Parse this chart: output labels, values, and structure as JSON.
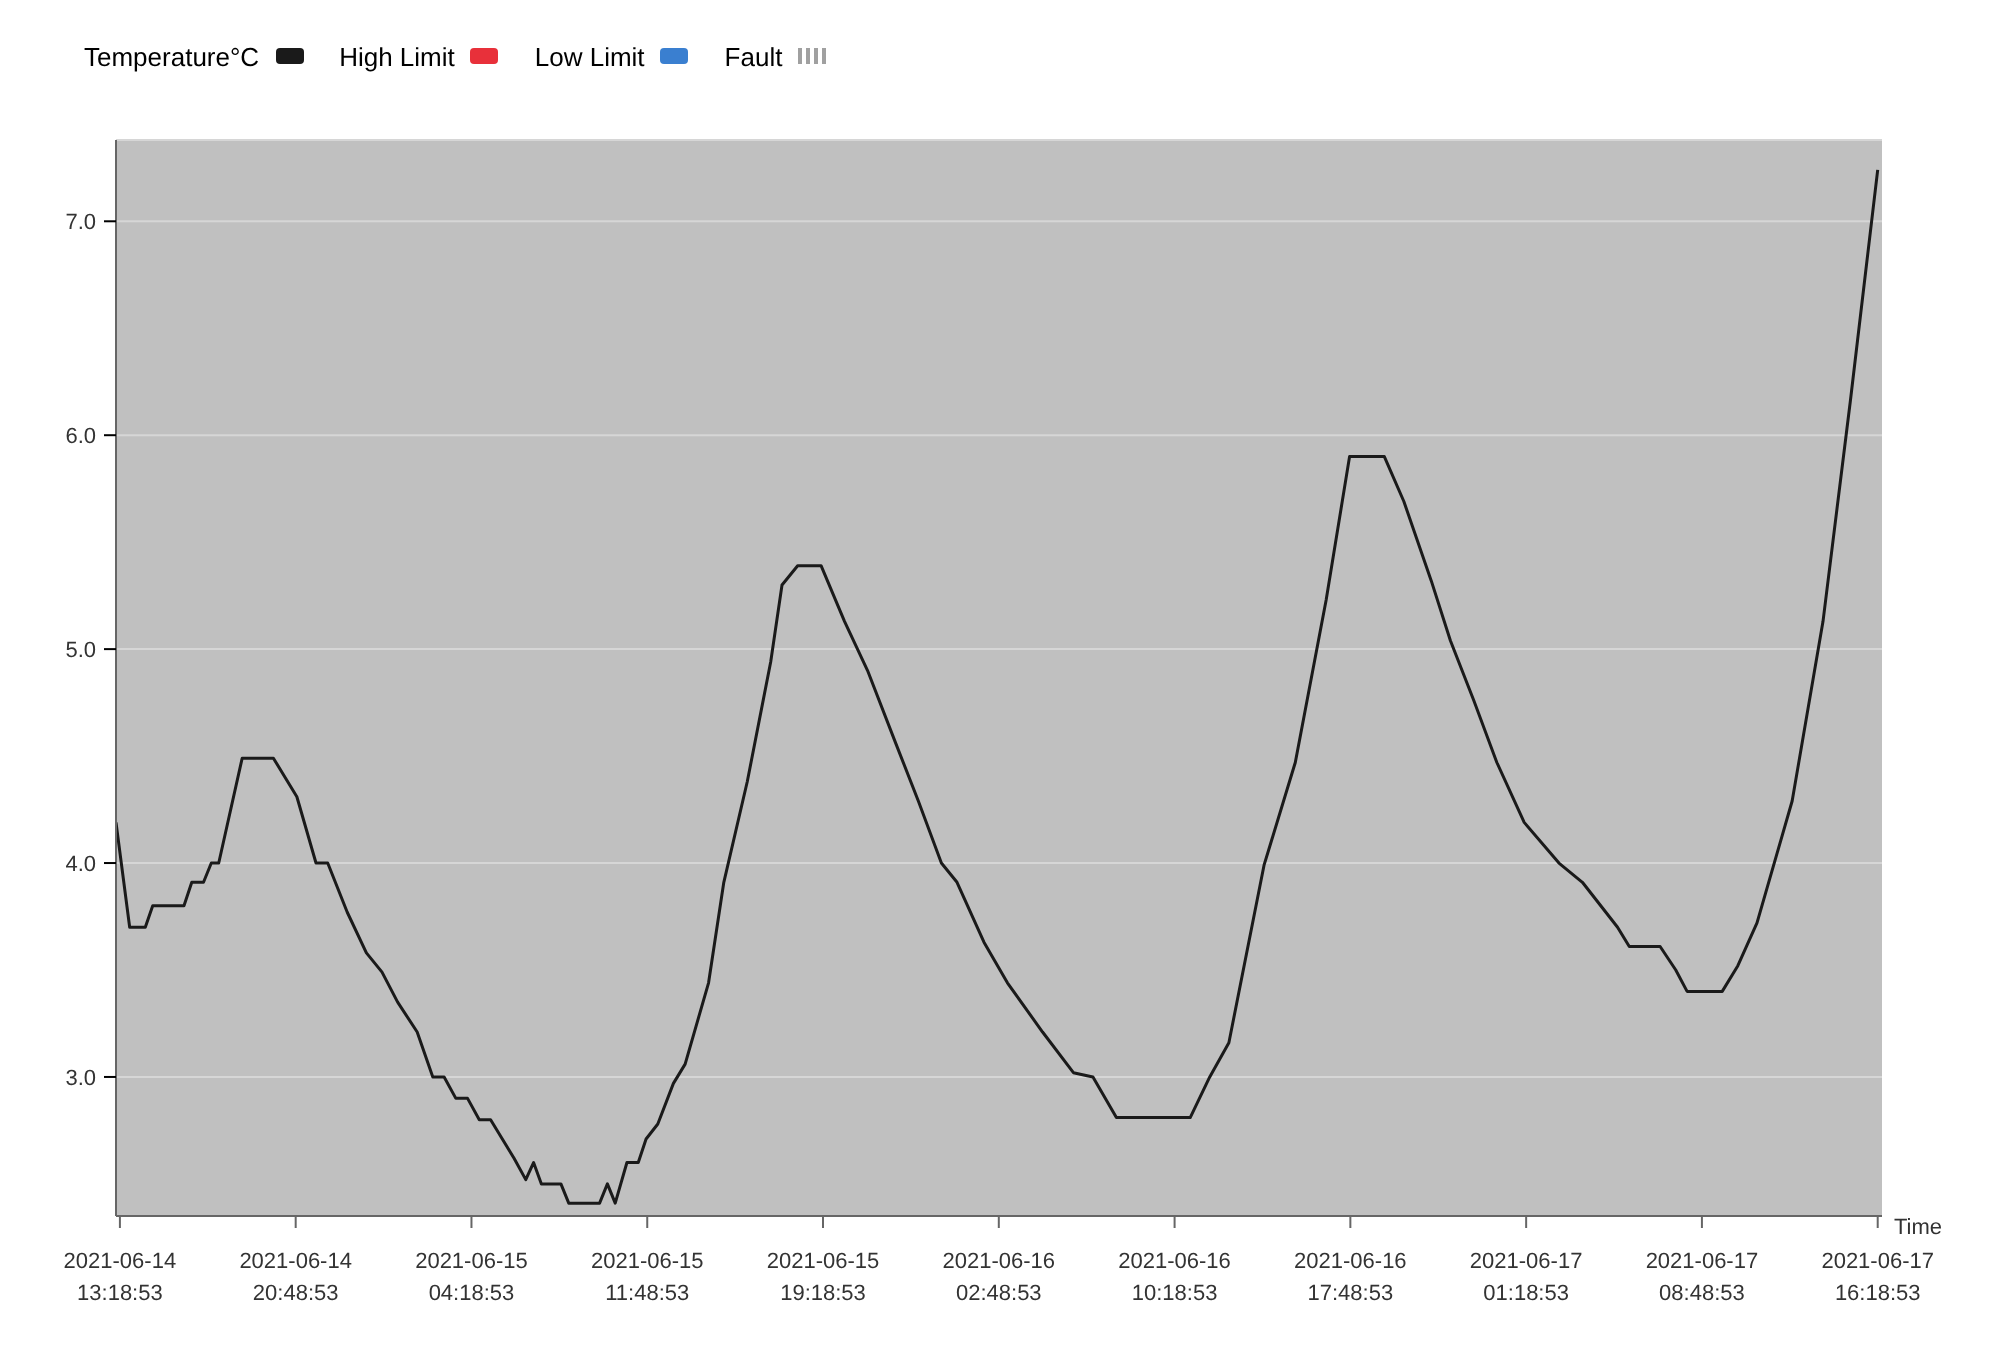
{
  "chart_data": {
    "type": "line",
    "xlabel": "Time",
    "legend": "top left",
    "grid": "y",
    "marker": "none",
    "x": [
      "2021-06-14T13:09",
      "2021-06-14T13:44",
      "2021-06-14T14:24",
      "2021-06-14T14:43",
      "2021-06-14T16:03",
      "2021-06-14T16:23",
      "2021-06-14T16:53",
      "2021-06-14T17:13",
      "2021-06-14T17:32",
      "2021-06-14T18:32",
      "2021-06-14T19:52",
      "2021-06-14T20:52",
      "2021-06-14T21:41",
      "2021-06-14T22:11",
      "2021-06-14T23:01",
      "2021-06-14T23:50",
      "2021-06-15T00:30",
      "2021-06-15T01:10",
      "2021-06-15T02:00",
      "2021-06-15T02:40",
      "2021-06-15T03:09",
      "2021-06-15T03:39",
      "2021-06-15T04:09",
      "2021-06-15T04:39",
      "2021-06-15T05:08",
      "2021-06-15T05:38",
      "2021-06-15T06:08",
      "2021-06-15T06:38",
      "2021-06-15T06:58",
      "2021-06-15T07:18",
      "2021-06-15T08:08",
      "2021-06-15T08:28",
      "2021-06-15T09:47",
      "2021-06-15T10:07",
      "2021-06-15T10:27",
      "2021-06-15T10:57",
      "2021-06-15T11:26",
      "2021-06-15T11:46",
      "2021-06-15T12:16",
      "2021-06-15T12:56",
      "2021-06-15T13:26",
      "2021-06-15T14:26",
      "2021-06-15T15:05",
      "2021-06-15T16:05",
      "2021-06-15T17:05",
      "2021-06-15T17:34",
      "2021-06-15T18:14",
      "2021-06-15T19:14",
      "2021-06-15T20:14",
      "2021-06-15T21:13",
      "2021-06-15T22:23",
      "2021-06-15T23:23",
      "2021-06-16T00:22",
      "2021-06-16T01:02",
      "2021-06-16T02:11",
      "2021-06-16T03:11",
      "2021-06-16T04:41",
      "2021-06-16T06:00",
      "2021-06-16T06:50",
      "2021-06-16T07:50",
      "2021-06-16T10:59",
      "2021-06-16T11:49",
      "2021-06-16T12:38",
      "2021-06-16T14:08",
      "2021-06-16T15:28",
      "2021-06-16T16:47",
      "2021-06-16T17:47",
      "2021-06-16T19:16",
      "2021-06-16T20:06",
      "2021-06-16T21:16",
      "2021-06-16T22:05",
      "2021-06-16T23:05",
      "2021-06-17T00:04",
      "2021-06-17T01:14",
      "2021-06-17T02:43",
      "2021-06-17T03:43",
      "2021-06-17T05:13",
      "2021-06-17T05:43",
      "2021-06-17T07:02",
      "2021-06-17T07:42",
      "2021-06-17T08:11",
      "2021-06-17T09:41",
      "2021-06-17T10:21",
      "2021-06-17T11:10",
      "2021-06-17T12:40",
      "2021-06-17T13:59",
      "2021-06-17T15:09",
      "2021-06-17T16:19"
    ],
    "series": [
      {
        "name": "Temperature°C",
        "color": "#1a1a1a",
        "values": [
          4.19,
          3.7,
          3.7,
          3.8,
          3.8,
          3.91,
          3.91,
          4.0,
          4.0,
          4.49,
          4.49,
          4.31,
          4.0,
          4.0,
          3.77,
          3.58,
          3.49,
          3.35,
          3.21,
          3.0,
          3.0,
          2.9,
          2.9,
          2.8,
          2.8,
          2.71,
          2.62,
          2.52,
          2.6,
          2.5,
          2.5,
          2.41,
          2.41,
          2.5,
          2.41,
          2.6,
          2.6,
          2.71,
          2.78,
          2.97,
          3.06,
          3.44,
          3.91,
          4.38,
          4.94,
          5.3,
          5.39,
          5.39,
          5.13,
          4.9,
          4.57,
          4.29,
          4.0,
          3.91,
          3.63,
          3.44,
          3.21,
          3.02,
          3.0,
          2.81,
          2.81,
          3.0,
          3.16,
          3.99,
          4.47,
          5.23,
          5.9,
          5.9,
          5.69,
          5.32,
          5.04,
          4.76,
          4.47,
          4.19,
          4.0,
          3.91,
          3.7,
          3.61,
          3.61,
          3.5,
          3.4,
          3.4,
          3.52,
          3.72,
          4.29,
          5.13,
          6.16,
          7.24
        ]
      },
      {
        "name": "High Limit",
        "color": "#e8303a",
        "values": [
          null,
          null,
          null,
          null,
          null,
          null,
          null,
          null,
          null,
          null,
          null,
          null,
          null,
          null,
          null,
          null,
          null,
          null,
          null,
          null,
          null,
          null,
          null,
          null,
          null,
          null,
          null,
          null,
          null,
          null,
          null,
          null,
          null,
          null,
          null,
          null,
          null,
          null,
          null,
          null,
          null,
          null,
          null,
          null,
          null,
          null,
          null,
          null,
          null,
          null,
          null,
          null,
          null,
          null,
          null,
          null,
          null,
          null,
          null,
          null,
          null,
          null,
          null,
          null,
          null,
          null,
          null,
          null,
          null,
          null,
          null,
          null,
          null,
          null,
          null,
          null,
          null,
          null,
          null,
          null,
          null,
          null,
          null,
          null,
          null,
          null,
          null,
          null
        ]
      },
      {
        "name": "Low Limit",
        "color": "#3a7fd0",
        "values": [
          null,
          null,
          null,
          null,
          null,
          null,
          null,
          null,
          null,
          null,
          null,
          null,
          null,
          null,
          null,
          null,
          null,
          null,
          null,
          null,
          null,
          null,
          null,
          null,
          null,
          null,
          null,
          null,
          null,
          null,
          null,
          null,
          null,
          null,
          null,
          null,
          null,
          null,
          null,
          null,
          null,
          null,
          null,
          null,
          null,
          null,
          null,
          null,
          null,
          null,
          null,
          null,
          null,
          null,
          null,
          null,
          null,
          null,
          null,
          null,
          null,
          null,
          null,
          null,
          null,
          null,
          null,
          null,
          null,
          null,
          null,
          null,
          null,
          null,
          null,
          null,
          null,
          null,
          null,
          null,
          null,
          null,
          null,
          null,
          null,
          null,
          null,
          null
        ]
      },
      {
        "name": "Fault",
        "color": "#a0a0a0",
        "line_style": "dotted",
        "values": [
          null,
          null,
          null,
          null,
          null,
          null,
          null,
          null,
          null,
          null,
          null,
          null,
          null,
          null,
          null,
          null,
          null,
          null,
          null,
          null,
          null,
          null,
          null,
          null,
          null,
          null,
          null,
          null,
          null,
          null,
          null,
          null,
          null,
          null,
          null,
          null,
          null,
          null,
          null,
          null,
          null,
          null,
          null,
          null,
          null,
          null,
          null,
          null,
          null,
          null,
          null,
          null,
          null,
          null,
          null,
          null,
          null,
          null,
          null,
          null,
          null,
          null,
          null,
          null,
          null,
          null,
          null,
          null,
          null,
          null,
          null,
          null,
          null,
          null,
          null,
          null,
          null,
          null,
          null,
          null,
          null,
          null,
          null,
          null,
          null,
          null,
          null,
          null
        ]
      }
    ],
    "xlim": [
      "2021-06-14T13:09",
      "2021-06-17T16:30"
    ],
    "xticks": [
      {
        "value": "2021-06-14T13:19",
        "label": "2021-06-14\n13:18:53"
      },
      {
        "value": "2021-06-14T20:49",
        "label": "2021-06-14\n20:48:53"
      },
      {
        "value": "2021-06-15T04:19",
        "label": "2021-06-15\n04:18:53"
      },
      {
        "value": "2021-06-15T11:49",
        "label": "2021-06-15\n11:48:53"
      },
      {
        "value": "2021-06-15T19:19",
        "label": "2021-06-15\n19:18:53"
      },
      {
        "value": "2021-06-16T02:49",
        "label": "2021-06-16\n02:48:53"
      },
      {
        "value": "2021-06-16T10:19",
        "label": "2021-06-16\n10:18:53"
      },
      {
        "value": "2021-06-16T17:49",
        "label": "2021-06-16\n17:48:53"
      },
      {
        "value": "2021-06-17T01:19",
        "label": "2021-06-17\n01:18:53"
      },
      {
        "value": "2021-06-17T08:49",
        "label": "2021-06-17\n08:48:53"
      },
      {
        "value": "2021-06-17T16:19",
        "label": "2021-06-17\n16:18:53"
      }
    ],
    "ylim": [
      2.35,
      7.38
    ],
    "yticks": [
      {
        "value": 3,
        "label": "3.0"
      },
      {
        "value": 4,
        "label": "4.0"
      },
      {
        "value": 5,
        "label": "5.0"
      },
      {
        "value": 6,
        "label": "6.0"
      },
      {
        "value": 7,
        "label": "7.0"
      }
    ]
  }
}
